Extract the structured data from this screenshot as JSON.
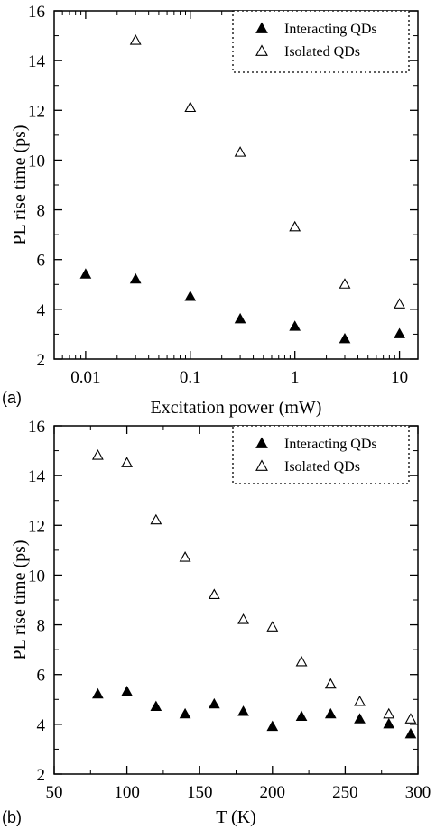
{
  "chart_data": [
    {
      "type": "scatter",
      "panel_label": "(a)",
      "xlabel": "Excitation power (mW)",
      "ylabel": "PL rise time (ps)",
      "xscale": "log",
      "xlim": [
        0.005,
        15
      ],
      "ylim": [
        2,
        16
      ],
      "xticks": [
        0.01,
        0.1,
        1,
        10
      ],
      "xticklabels": [
        "0.01",
        "0.1",
        "1",
        "10"
      ],
      "yticks": [
        2,
        4,
        6,
        8,
        10,
        12,
        14,
        16
      ],
      "yticklabels": [
        "2",
        "4",
        "6",
        "8",
        "10",
        "12",
        "14",
        "16"
      ],
      "legend_position": "top-right",
      "series": [
        {
          "name": "Interacting QDs",
          "marker": "filled-triangle",
          "x": [
            0.01,
            0.03,
            0.1,
            0.3,
            1,
            3,
            10
          ],
          "y": [
            5.4,
            5.2,
            4.5,
            3.6,
            3.3,
            2.8,
            3.0
          ]
        },
        {
          "name": "Isolated QDs",
          "marker": "open-triangle",
          "x": [
            0.03,
            0.1,
            0.3,
            1,
            3,
            10
          ],
          "y": [
            14.8,
            12.1,
            10.3,
            7.3,
            5.0,
            4.2
          ]
        }
      ]
    },
    {
      "type": "scatter",
      "panel_label": "(b)",
      "xlabel": "T (K)",
      "ylabel": "PL rise time (ps)",
      "xscale": "linear",
      "xlim": [
        50,
        300
      ],
      "ylim": [
        2,
        16
      ],
      "xticks": [
        50,
        100,
        150,
        200,
        250,
        300
      ],
      "xticklabels": [
        "50",
        "100",
        "150",
        "200",
        "250",
        "300"
      ],
      "yticks": [
        2,
        4,
        6,
        8,
        10,
        12,
        14,
        16
      ],
      "yticklabels": [
        "2",
        "4",
        "6",
        "8",
        "10",
        "12",
        "14",
        "16"
      ],
      "legend_position": "top-right",
      "series": [
        {
          "name": "Interacting QDs",
          "marker": "filled-triangle",
          "x": [
            80,
            100,
            120,
            140,
            160,
            180,
            200,
            220,
            240,
            260,
            280,
            295
          ],
          "y": [
            5.2,
            5.3,
            4.7,
            4.4,
            4.8,
            4.5,
            3.9,
            4.3,
            4.4,
            4.2,
            4.0,
            3.6
          ]
        },
        {
          "name": "Isolated QDs",
          "marker": "open-triangle",
          "x": [
            80,
            100,
            120,
            140,
            160,
            180,
            200,
            220,
            240,
            260,
            280,
            295
          ],
          "y": [
            14.8,
            14.5,
            12.2,
            10.7,
            9.2,
            8.2,
            7.9,
            6.5,
            5.6,
            4.9,
            4.4,
            4.2
          ]
        }
      ]
    }
  ]
}
